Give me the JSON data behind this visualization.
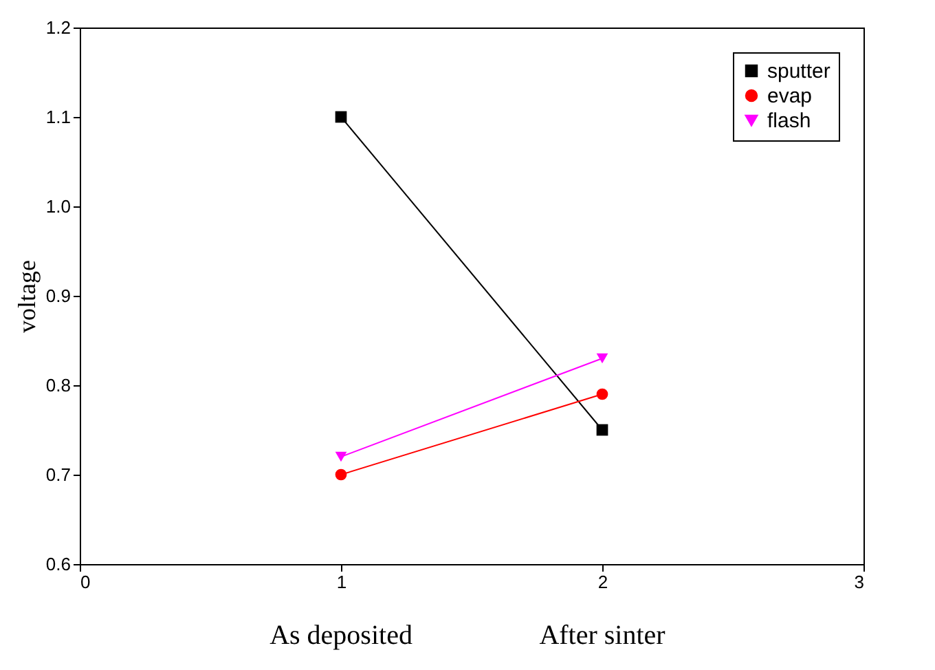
{
  "chart_data": {
    "type": "line",
    "ylabel": "voltage",
    "x": [
      1,
      2
    ],
    "xlim": [
      0,
      3
    ],
    "xticks": [
      0,
      1,
      2,
      3
    ],
    "ylim": [
      0.6,
      1.2
    ],
    "yticks": [
      0.6,
      0.7,
      0.8,
      0.9,
      {
        "value": 1.0,
        "label": "1.0"
      },
      1.1,
      1.2
    ],
    "series": [
      {
        "name": "sputter",
        "color": "#000000",
        "marker": "square",
        "values": [
          1.1,
          0.75
        ]
      },
      {
        "name": "evap",
        "color": "#ff0000",
        "marker": "circle",
        "values": [
          0.7,
          0.79
        ]
      },
      {
        "name": "flash",
        "color": "#ff00ff",
        "marker": "triangle",
        "values": [
          0.72,
          0.83
        ]
      }
    ],
    "annotations": [
      "As deposited",
      "After sinter"
    ],
    "legend": "top right",
    "grid": false,
    "line_style": "solid"
  }
}
